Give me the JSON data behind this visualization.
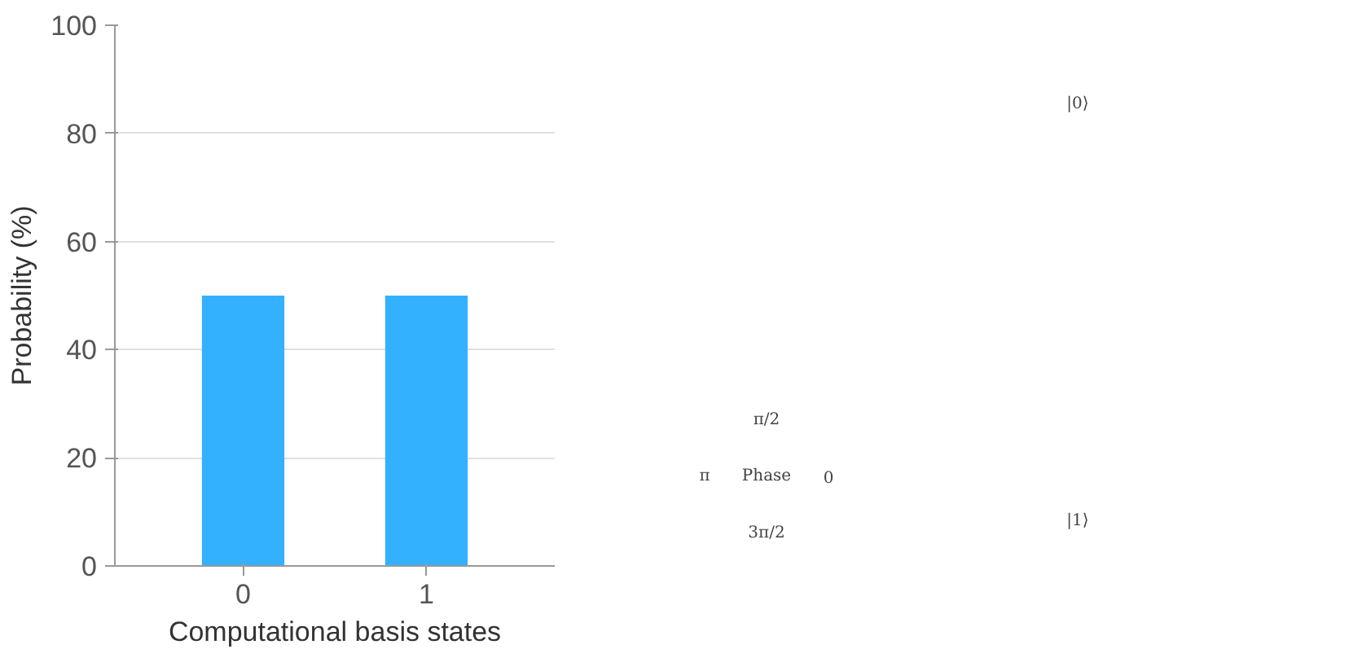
{
  "chart_data": {
    "type": "bar",
    "xlabel": "Computational basis states",
    "ylabel": "Probability (%)",
    "categories": [
      "0",
      "1"
    ],
    "values": [
      50,
      50
    ],
    "color": "#33b1ff",
    "ylim": [
      0,
      100
    ],
    "yticks": [
      0,
      20,
      40,
      60,
      80,
      100
    ],
    "grid": "y",
    "annotations": [
      "|0⟩",
      "|1⟩",
      "π/2",
      "π",
      "0",
      "3π/2",
      "Phase"
    ]
  }
}
